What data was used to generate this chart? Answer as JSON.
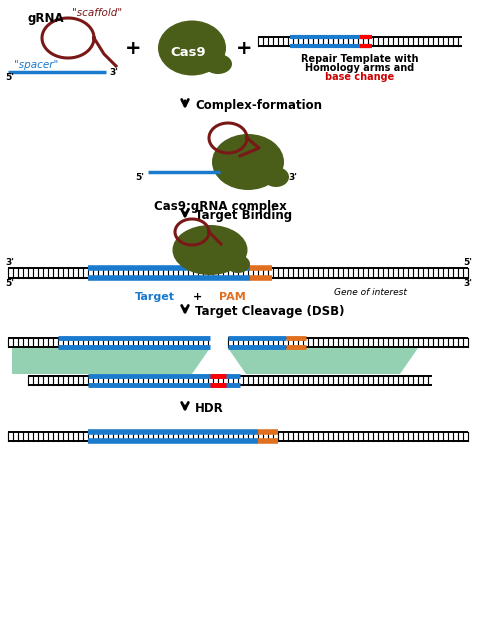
{
  "bg_color": "#ffffff",
  "dark_green": "#4a5e1a",
  "dark_red": "#7a1818",
  "blue": "#1a7acd",
  "orange": "#e07020",
  "light_green": "#88ccaa",
  "black": "#000000",
  "red_text": "#cc0000",
  "scaffold_text": "\"scaffold\"",
  "spacer_text": "\"spacer\"",
  "grna_text": "gRNA",
  "cas9_text": "Cas9",
  "repair_text1": "Repair Template with",
  "repair_text2": "Homology arms and",
  "repair_text3": "base change",
  "step1_text": "Complex-formation",
  "step2_label": "Cas9:gRNA complex",
  "step3_text": "Target Binding",
  "target_label": "Target",
  "plus_label": "+",
  "pam_label": "PAM",
  "gene_label": "Gene of interest",
  "step4_text": "Target Cleavage (DSB)",
  "step5_text": "HDR"
}
